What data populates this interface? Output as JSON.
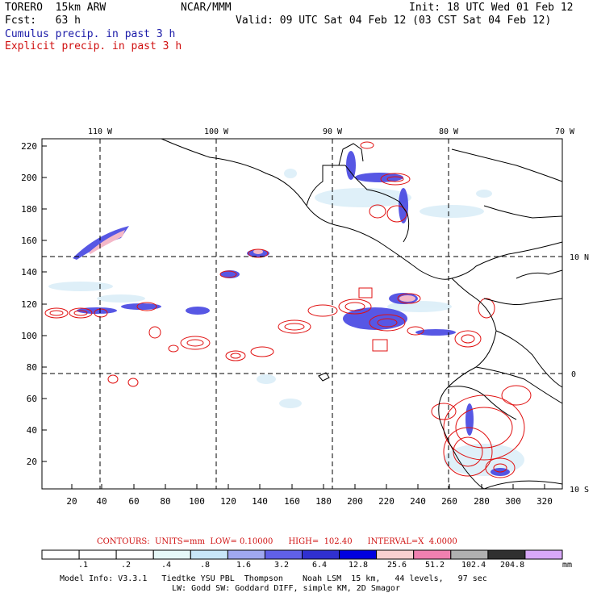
{
  "header": {
    "model": "TORERO  15km ARW",
    "org": "NCAR/MMM",
    "init": "Init: 18 UTC Wed 01 Feb 12",
    "fcst": "Fcst:   63 h",
    "valid": "Valid: 09 UTC Sat 04 Feb 12 (03 CST Sat 04 Feb 12)",
    "field1": "Cumulus precip. in past 3 h",
    "field2": "Explicit precip. in past 3 h"
  },
  "map": {
    "lon_labels": [
      "110 W",
      "100 W",
      "90 W",
      "80 W",
      "70 W"
    ],
    "lat_labels": [
      "10 N",
      "0",
      "10 S"
    ],
    "y_ticks": [
      "220",
      "200",
      "180",
      "160",
      "140",
      "120",
      "100",
      "80",
      "60",
      "40",
      "20"
    ],
    "x_ticks": [
      "20",
      "40",
      "60",
      "80",
      "100",
      "120",
      "140",
      "160",
      "180",
      "200",
      "220",
      "240",
      "260",
      "280",
      "300",
      "320"
    ]
  },
  "contours": "CONTOURS:  UNITS=mm  LOW= 0.10000      HIGH=  102.40      INTERVAL=X  4.0000",
  "colorbar": {
    "labels": [
      ".1",
      ".2",
      ".4",
      ".8",
      "1.6",
      "3.2",
      "6.4",
      "12.8",
      "25.6",
      "51.2",
      "102.4",
      "204.8"
    ],
    "unit": "mm",
    "colors": [
      "#ffffff",
      "#ffffff",
      "#ffffff",
      "#e6f8f8",
      "#c8e6f8",
      "#a0a8f0",
      "#6060e8",
      "#3030d0",
      "#0000e0",
      "#f8d0d0",
      "#f080b0",
      "#b0b0b0",
      "#303030",
      "#d8a8f8"
    ]
  },
  "footer": {
    "line1": "Model Info: V3.3.1   Tiedtke YSU PBL  Thompson    Noah LSM  15 km,   44 levels,   97 sec",
    "line2": "LW: Godd SW: Goddard DIFF, simple KM, 2D Smagor"
  }
}
